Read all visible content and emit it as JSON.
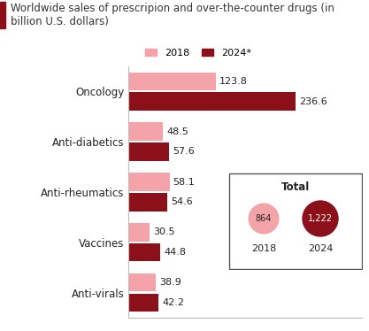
{
  "chart_data": {
    "type": "bar",
    "orientation": "horizontal",
    "title": "Worldwide sales of prescripion and over-the-counter drugs (in billion U.S. dollars)",
    "categories": [
      "Oncology",
      "Anti-diabetics",
      "Anti-rheumatics",
      "Vaccines",
      "Anti-virals"
    ],
    "series": [
      {
        "name": "2018",
        "color": "#f4a3a9",
        "values": [
          123.8,
          48.5,
          58.1,
          30.5,
          38.9
        ]
      },
      {
        "name": "2024*",
        "color": "#8c1019",
        "values": [
          236.6,
          57.6,
          54.6,
          44.8,
          42.2
        ]
      }
    ],
    "xlim": [
      0,
      330
    ],
    "data_labels": true,
    "tick_labels": "y",
    "legend": "lower center",
    "total": {
      "title": "Total",
      "items": [
        {
          "label": "2018",
          "value": 864,
          "value_label": "864",
          "color": "#f4a3a9"
        },
        {
          "label": "2024",
          "value": 1222,
          "value_label": "1,222",
          "color": "#8c1019"
        }
      ]
    }
  }
}
